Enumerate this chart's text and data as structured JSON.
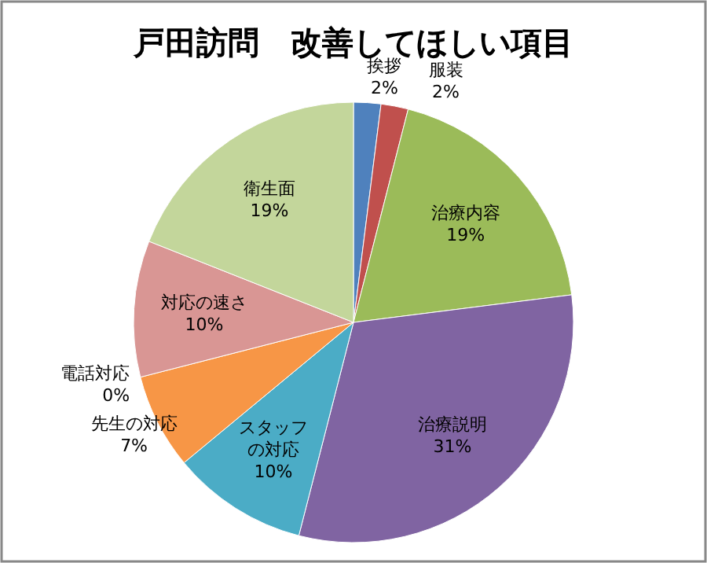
{
  "chart_data": {
    "type": "pie",
    "title": "戸田訪問　改善してほしい項目",
    "categories": [
      "挨拶",
      "服装",
      "治療内容",
      "治療説明",
      "スタッフの対応",
      "先生の対応",
      "電話対応",
      "対応の速さ",
      "衛生面"
    ],
    "values": [
      2,
      2,
      19,
      31,
      10,
      7,
      0,
      10,
      19
    ],
    "colors": [
      "#4f81bd",
      "#c0504d",
      "#9bbb59",
      "#8064a2",
      "#4bacc6",
      "#f79646",
      "#95b3d7",
      "#d99694",
      "#c3d69b"
    ],
    "value_labels": [
      "2%",
      "2%",
      "19%",
      "31%",
      "10%",
      "7%",
      "0%",
      "10%",
      "19%"
    ]
  }
}
